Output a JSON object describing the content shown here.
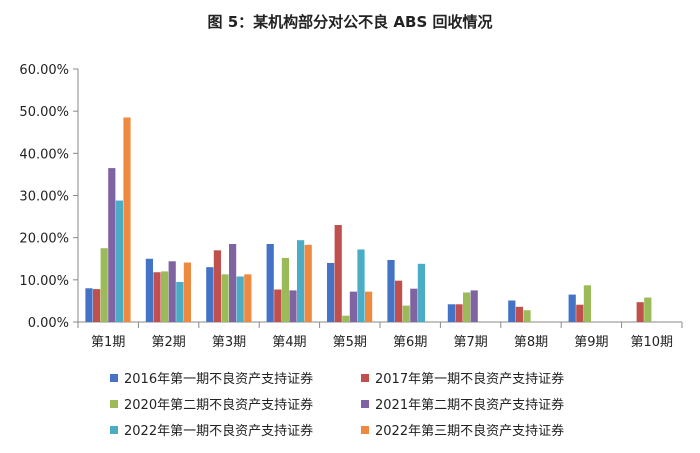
{
  "chart_data": {
    "type": "bar",
    "title": "图 5：某机构部分对公不良 ABS 回收情况",
    "xlabel": "",
    "ylabel": "",
    "ylim": [
      0,
      60
    ],
    "yticks": [
      "0.00%",
      "10.00%",
      "20.00%",
      "30.00%",
      "40.00%",
      "50.00%",
      "60.00%"
    ],
    "grid": false,
    "legend": "bottom",
    "categories": [
      "第1期",
      "第2期",
      "第3期",
      "第4期",
      "第5期",
      "第6期",
      "第7期",
      "第8期",
      "第9期",
      "第10期"
    ],
    "series": [
      {
        "name": "2016年第一期不良资产支持证券",
        "color": "#4472C4",
        "values": [
          8.0,
          15.0,
          13.0,
          18.5,
          14.0,
          14.7,
          4.2,
          5.1,
          6.5,
          null
        ]
      },
      {
        "name": "2017年第一期不良资产支持证券",
        "color": "#C0504D",
        "values": [
          7.8,
          11.8,
          17.0,
          7.7,
          23.0,
          9.8,
          4.2,
          3.6,
          4.1,
          4.7
        ]
      },
      {
        "name": "2020年第二期不良资产支持证券",
        "color": "#9BBB59",
        "values": [
          17.5,
          12.0,
          11.3,
          15.2,
          1.5,
          3.9,
          7.0,
          2.8,
          8.7,
          5.8
        ]
      },
      {
        "name": "2021年第二期不良资产支持证券",
        "color": "#8064A2",
        "values": [
          36.5,
          14.4,
          18.5,
          7.5,
          7.2,
          7.9,
          7.5,
          null,
          null,
          null
        ]
      },
      {
        "name": "2022年第一期不良资产支持证券",
        "color": "#4BACC6",
        "values": [
          28.8,
          9.5,
          10.8,
          19.4,
          17.2,
          13.8,
          null,
          null,
          null,
          null
        ]
      },
      {
        "name": "2022年第三期不良资产支持证券",
        "color": "#ED8A3F",
        "values": [
          48.5,
          14.1,
          11.3,
          18.3,
          7.2,
          null,
          null,
          null,
          null,
          null
        ]
      }
    ]
  }
}
